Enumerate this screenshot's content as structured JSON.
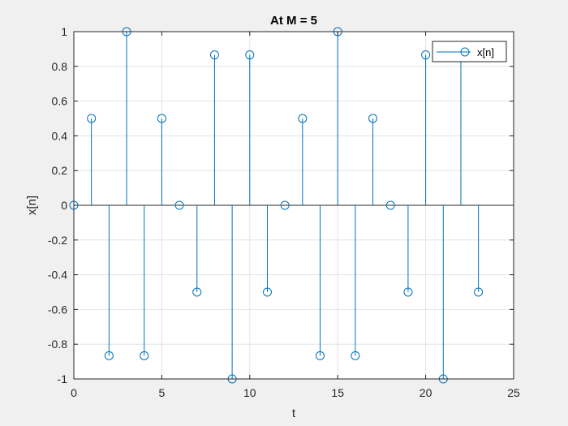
{
  "chart_data": {
    "type": "stem",
    "title": "At M = 5",
    "xlabel": "t",
    "ylabel": "x[n]",
    "xlim": [
      0,
      25
    ],
    "ylim": [
      -1,
      1
    ],
    "xticks": [
      0,
      5,
      10,
      15,
      20,
      25
    ],
    "yticks": [
      -1,
      -0.8,
      -0.6,
      -0.4,
      -0.2,
      0,
      0.2,
      0.4,
      0.6,
      0.8,
      1
    ],
    "grid": true,
    "legend_location": "top-right",
    "series": [
      {
        "name": "x[n]",
        "color": "#0072BD",
        "marker": "circle",
        "x": [
          0,
          1,
          2,
          3,
          4,
          5,
          6,
          7,
          8,
          9,
          10,
          11,
          12,
          13,
          14,
          15,
          16,
          17,
          18,
          19,
          20,
          21,
          22,
          23
        ],
        "values": [
          0,
          0.5,
          -0.866,
          1,
          -0.866,
          0.5,
          0,
          -0.5,
          0.866,
          -1,
          0.866,
          -0.5,
          0,
          0.5,
          -0.866,
          1,
          -0.866,
          0.5,
          0,
          -0.5,
          0.866,
          -1,
          0.866,
          -0.5
        ]
      }
    ]
  }
}
